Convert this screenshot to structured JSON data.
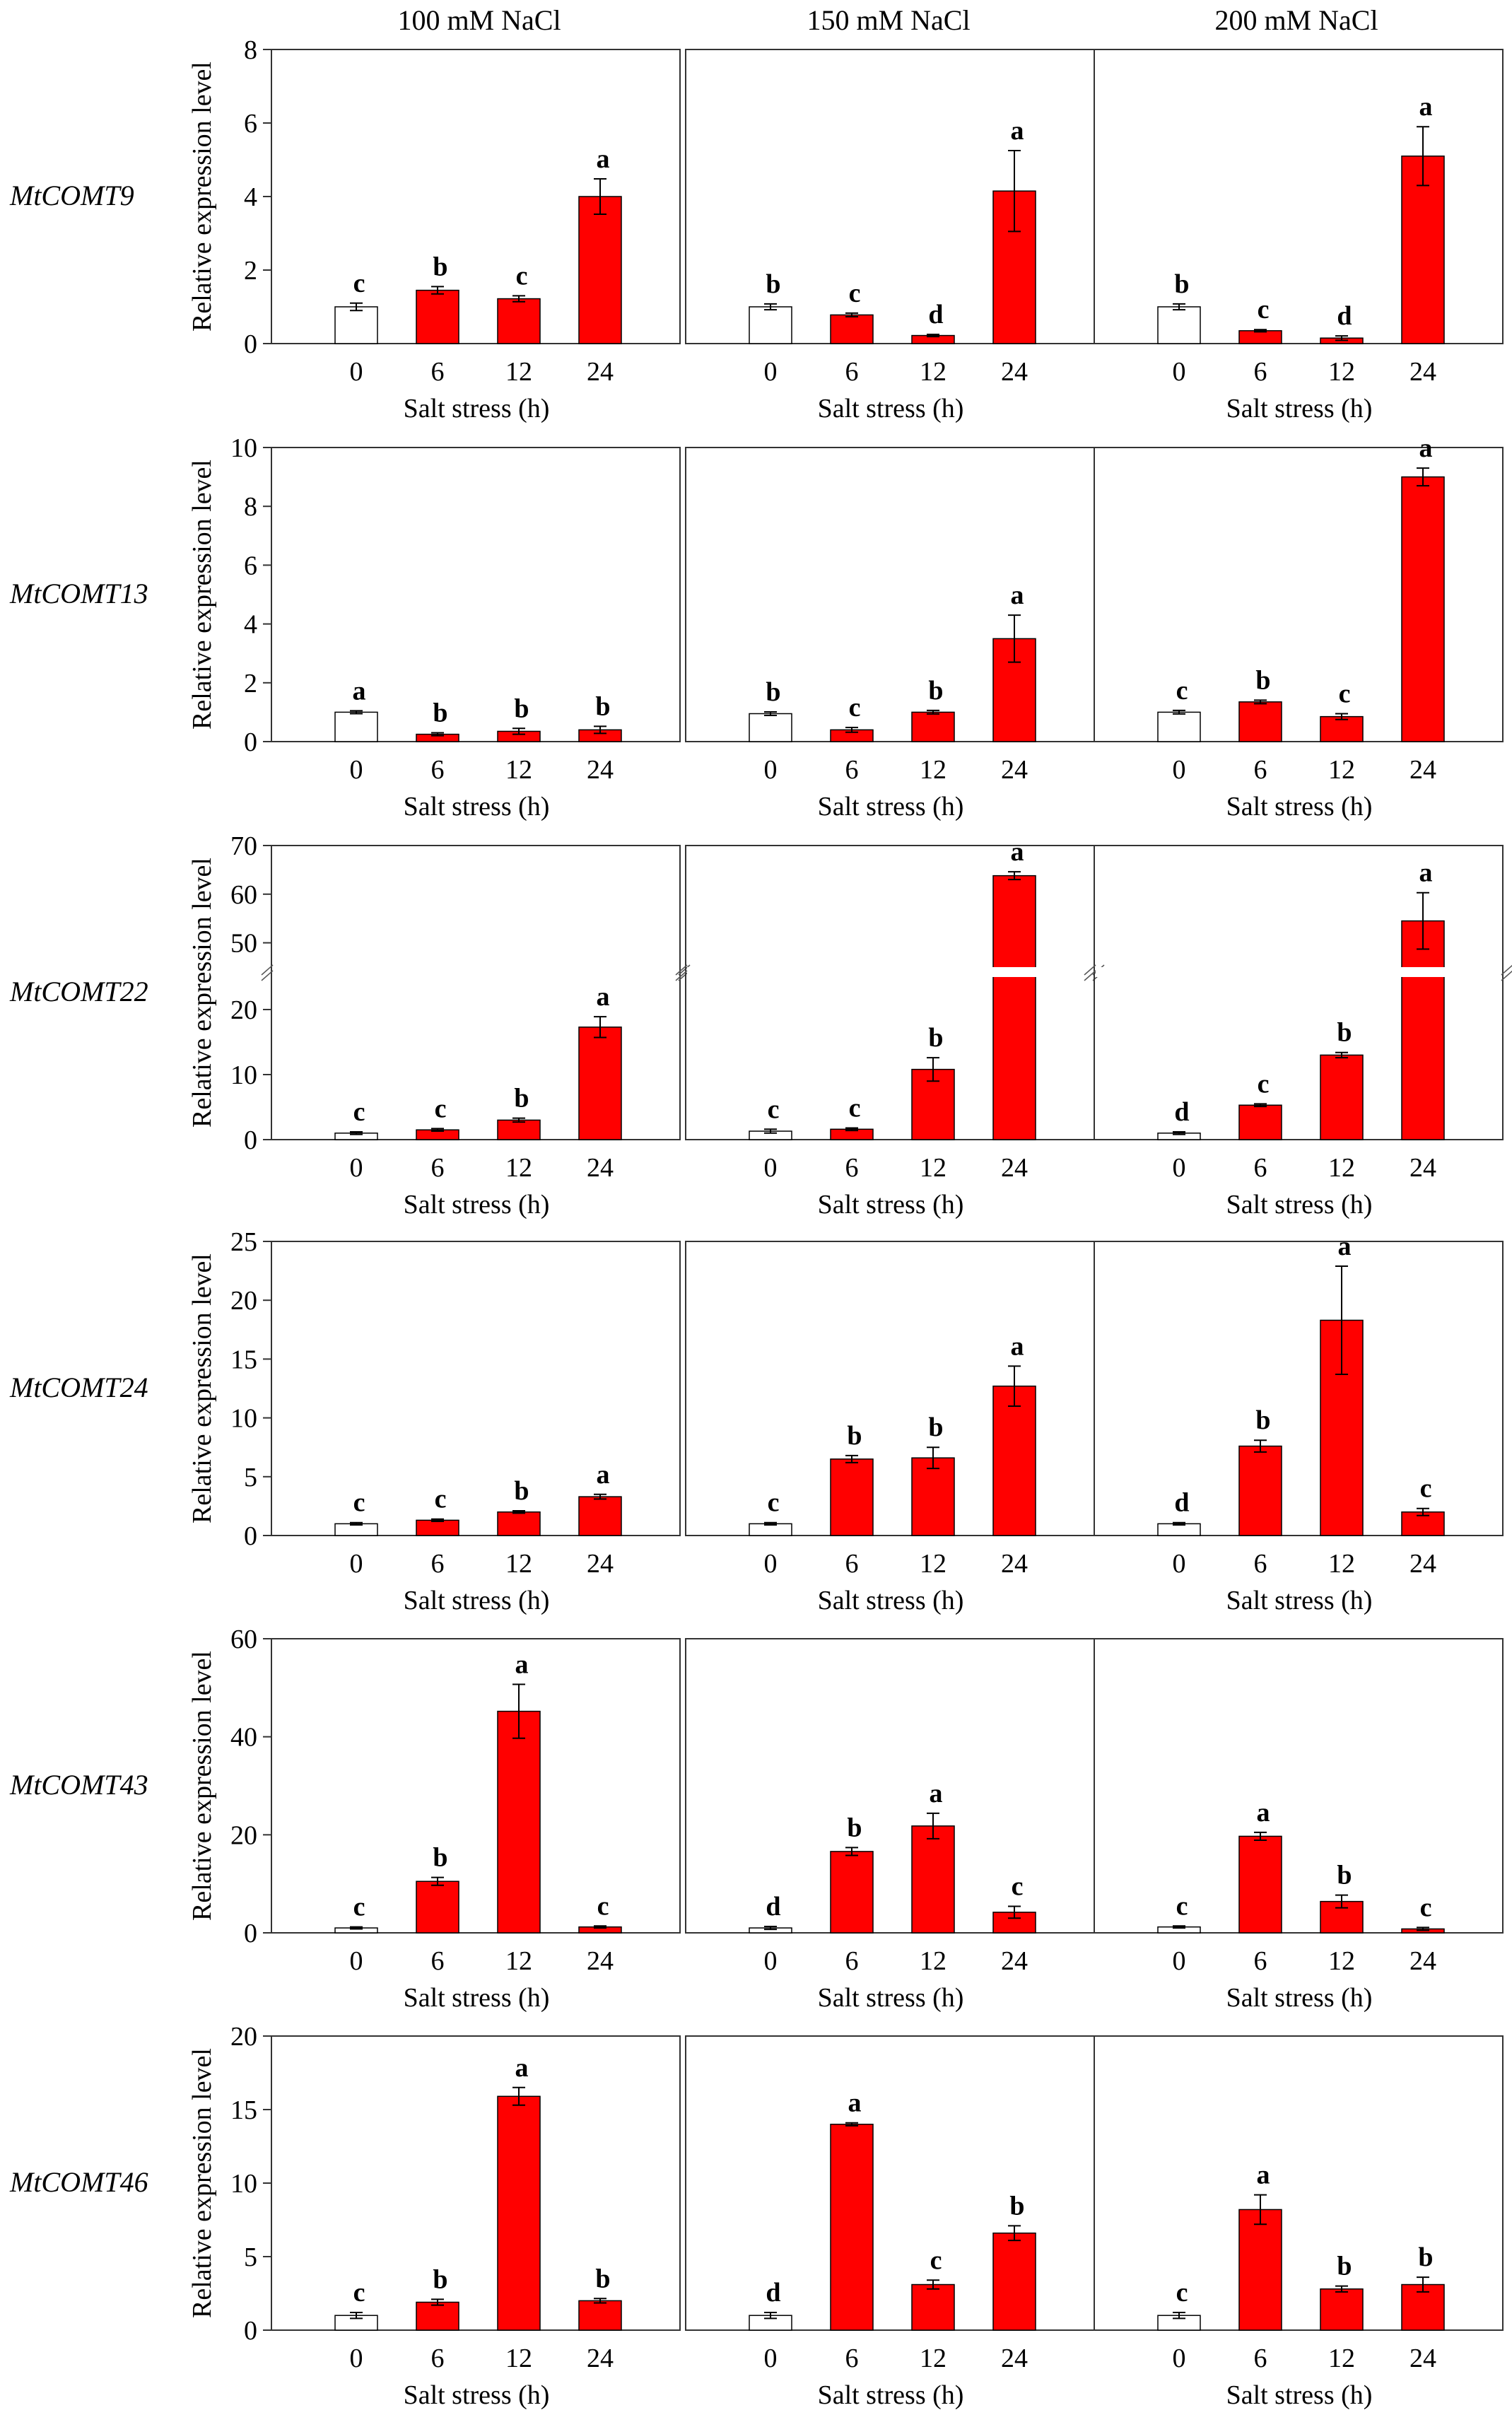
{
  "colors": {
    "control": "#ffffff",
    "treated": "#ff0000",
    "axis": "#333333"
  },
  "conditions": [
    "100 mM NaCl",
    "150 mM NaCl",
    "200 mM NaCl"
  ],
  "xlabel": "Salt stress (h)",
  "ylabel": "Relative expression level",
  "categories": [
    "0",
    "6",
    "12",
    "24"
  ],
  "chart_data": [
    {
      "type": "bar",
      "gene": "MtCOMT9",
      "ylim": [
        0,
        8
      ],
      "yticks": [
        0,
        2,
        4,
        6,
        8
      ],
      "panels": [
        {
          "values": [
            1.0,
            1.45,
            1.22,
            4.0
          ],
          "errors": [
            0.1,
            0.1,
            0.08,
            0.48
          ],
          "letters": [
            "c",
            "b",
            "c",
            "a"
          ]
        },
        {
          "values": [
            1.0,
            0.78,
            0.22,
            4.15
          ],
          "errors": [
            0.08,
            0.05,
            0.03,
            1.1
          ],
          "letters": [
            "b",
            "c",
            "d",
            "a"
          ]
        },
        {
          "values": [
            1.0,
            0.35,
            0.15,
            5.1
          ],
          "errors": [
            0.08,
            0.03,
            0.06,
            0.8
          ],
          "letters": [
            "b",
            "c",
            "d",
            "a"
          ]
        }
      ]
    },
    {
      "type": "bar",
      "gene": "MtCOMT13",
      "ylim": [
        0,
        10
      ],
      "yticks": [
        0,
        2,
        4,
        6,
        8,
        10
      ],
      "panels": [
        {
          "values": [
            1.0,
            0.25,
            0.35,
            0.4
          ],
          "errors": [
            0.05,
            0.05,
            0.1,
            0.12
          ],
          "letters": [
            "a",
            "b",
            "b",
            "b"
          ]
        },
        {
          "values": [
            0.95,
            0.4,
            1.0,
            3.5
          ],
          "errors": [
            0.06,
            0.08,
            0.06,
            0.8
          ],
          "letters": [
            "b",
            "c",
            "b",
            "a"
          ]
        },
        {
          "values": [
            1.0,
            1.35,
            0.85,
            9.0
          ],
          "errors": [
            0.06,
            0.06,
            0.1,
            0.3
          ],
          "letters": [
            "c",
            "b",
            "c",
            "a"
          ]
        }
      ]
    },
    {
      "type": "bar",
      "gene": "MtCOMT22",
      "broken": true,
      "ylim": [
        0,
        70
      ],
      "lower_ylim": [
        0,
        25
      ],
      "upper_ylim": [
        45,
        70
      ],
      "yticks": [
        0,
        10,
        20,
        50,
        60,
        70
      ],
      "panels": [
        {
          "values": [
            1.0,
            1.5,
            3.0,
            17.3
          ],
          "errors": [
            0.2,
            0.2,
            0.3,
            1.6
          ],
          "letters": [
            "c",
            "c",
            "b",
            "a"
          ]
        },
        {
          "values": [
            1.3,
            1.6,
            10.8,
            63.8
          ],
          "errors": [
            0.3,
            0.2,
            1.8,
            0.8
          ],
          "letters": [
            "c",
            "c",
            "b",
            "a"
          ]
        },
        {
          "values": [
            1.0,
            5.3,
            13.0,
            54.5
          ],
          "errors": [
            0.2,
            0.2,
            0.4,
            5.8
          ],
          "letters": [
            "d",
            "c",
            "b",
            "a"
          ]
        }
      ]
    },
    {
      "type": "bar",
      "gene": "MtCOMT24",
      "ylim": [
        0,
        25
      ],
      "yticks": [
        0,
        5,
        10,
        15,
        20,
        25
      ],
      "panels": [
        {
          "values": [
            1.0,
            1.3,
            2.0,
            3.3
          ],
          "errors": [
            0.1,
            0.1,
            0.1,
            0.2
          ],
          "letters": [
            "c",
            "c",
            "b",
            "a"
          ]
        },
        {
          "values": [
            1.0,
            6.5,
            6.6,
            12.7
          ],
          "errors": [
            0.1,
            0.3,
            0.9,
            1.7
          ],
          "letters": [
            "c",
            "b",
            "b",
            "a"
          ]
        },
        {
          "values": [
            1.0,
            7.6,
            18.3,
            2.0
          ],
          "errors": [
            0.1,
            0.5,
            4.6,
            0.3
          ],
          "letters": [
            "d",
            "b",
            "a",
            "c"
          ]
        }
      ]
    },
    {
      "type": "bar",
      "gene": "MtCOMT43",
      "ylim": [
        0,
        60
      ],
      "yticks": [
        0,
        20,
        40,
        60
      ],
      "panels": [
        {
          "values": [
            1.0,
            10.5,
            45.2,
            1.2
          ],
          "errors": [
            0.2,
            0.8,
            5.5,
            0.2
          ],
          "letters": [
            "c",
            "b",
            "a",
            "c"
          ]
        },
        {
          "values": [
            1.0,
            16.6,
            21.8,
            4.2
          ],
          "errors": [
            0.3,
            0.8,
            2.6,
            1.2
          ],
          "letters": [
            "d",
            "b",
            "a",
            "c"
          ]
        },
        {
          "values": [
            1.2,
            19.7,
            6.4,
            0.8
          ],
          "errors": [
            0.2,
            0.8,
            1.3,
            0.3
          ],
          "letters": [
            "c",
            "a",
            "b",
            "c"
          ]
        }
      ]
    },
    {
      "type": "bar",
      "gene": "MtCOMT46",
      "ylim": [
        0,
        20
      ],
      "yticks": [
        0,
        5,
        10,
        15,
        20
      ],
      "panels": [
        {
          "values": [
            1.0,
            1.9,
            15.9,
            2.0
          ],
          "errors": [
            0.2,
            0.2,
            0.6,
            0.15
          ],
          "letters": [
            "c",
            "b",
            "a",
            "b"
          ]
        },
        {
          "values": [
            1.0,
            14.0,
            3.1,
            6.6
          ],
          "errors": [
            0.2,
            0.1,
            0.3,
            0.5
          ],
          "letters": [
            "d",
            "a",
            "c",
            "b"
          ]
        },
        {
          "values": [
            1.0,
            8.2,
            2.8,
            3.1
          ],
          "errors": [
            0.2,
            1.0,
            0.2,
            0.5
          ],
          "letters": [
            "c",
            "a",
            "b",
            "b"
          ]
        }
      ]
    }
  ]
}
